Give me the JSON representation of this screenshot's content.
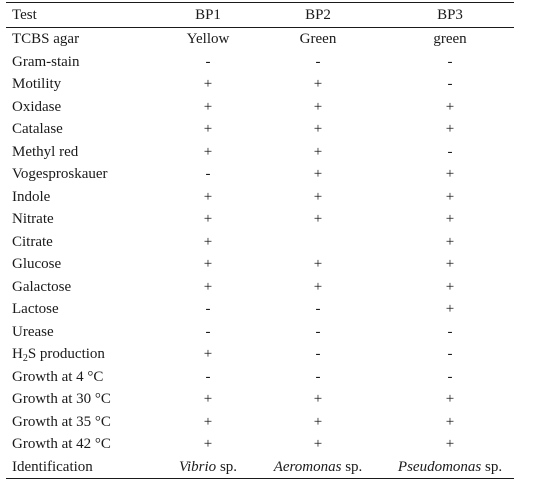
{
  "table": {
    "headers": {
      "test": "Test",
      "bp1": "BP1",
      "bp2": "BP2",
      "bp3": "BP3"
    },
    "rows": [
      {
        "test": "TCBS agar",
        "bp1": "Yellow",
        "bp2": "Green",
        "bp3": "green"
      },
      {
        "test": "Gram-stain",
        "bp1": "-",
        "bp2": "-",
        "bp3": "-"
      },
      {
        "test": "Motility",
        "bp1": "+",
        "bp2": "+",
        "bp3": "-"
      },
      {
        "test": "Oxidase",
        "bp1": "+",
        "bp2": "+",
        "bp3": "+"
      },
      {
        "test": "Catalase",
        "bp1": "+",
        "bp2": "+",
        "bp3": "+"
      },
      {
        "test": "Methyl red",
        "bp1": "+",
        "bp2": "+",
        "bp3": "-"
      },
      {
        "test": "Vogesproskauer",
        "bp1": "-",
        "bp2": "+",
        "bp3": "+"
      },
      {
        "test": "Indole",
        "bp1": "+",
        "bp2": "+",
        "bp3": "+"
      },
      {
        "test": "Nitrate",
        "bp1": "+",
        "bp2": "+",
        "bp3": "+"
      },
      {
        "test": "Citrate",
        "bp1": "+",
        "bp2": "",
        "bp3": "+"
      },
      {
        "test": "Glucose",
        "bp1": "+",
        "bp2": "+",
        "bp3": "+"
      },
      {
        "test": "Galactose",
        "bp1": "+",
        "bp2": "+",
        "bp3": "+"
      },
      {
        "test": "Lactose",
        "bp1": "-",
        "bp2": "-",
        "bp3": "+"
      },
      {
        "test": "Urease",
        "bp1": "-",
        "bp2": "-",
        "bp3": "-"
      },
      {
        "test_prefix": "H",
        "test_sub": "2",
        "test_suffix": "S production",
        "bp1": "+",
        "bp2": "-",
        "bp3": "-"
      },
      {
        "test": "Growth at 4 °C",
        "bp1": "-",
        "bp2": "-",
        "bp3": "-"
      },
      {
        "test": "Growth at 30 °C",
        "bp1": "+",
        "bp2": "+",
        "bp3": "+"
      },
      {
        "test": "Growth at 35 °C",
        "bp1": "+",
        "bp2": "+",
        "bp3": "+"
      },
      {
        "test": "Growth at 42 °C",
        "bp1": "+",
        "bp2": "+",
        "bp3": "+"
      }
    ],
    "identification": {
      "label": "Identification",
      "bp1_genus": "Vibrio",
      "bp1_suffix": " sp.",
      "bp2_genus": "Aeromonas",
      "bp2_suffix": " sp.",
      "bp3_genus": "Pseudomonas",
      "bp3_suffix": " sp."
    }
  }
}
